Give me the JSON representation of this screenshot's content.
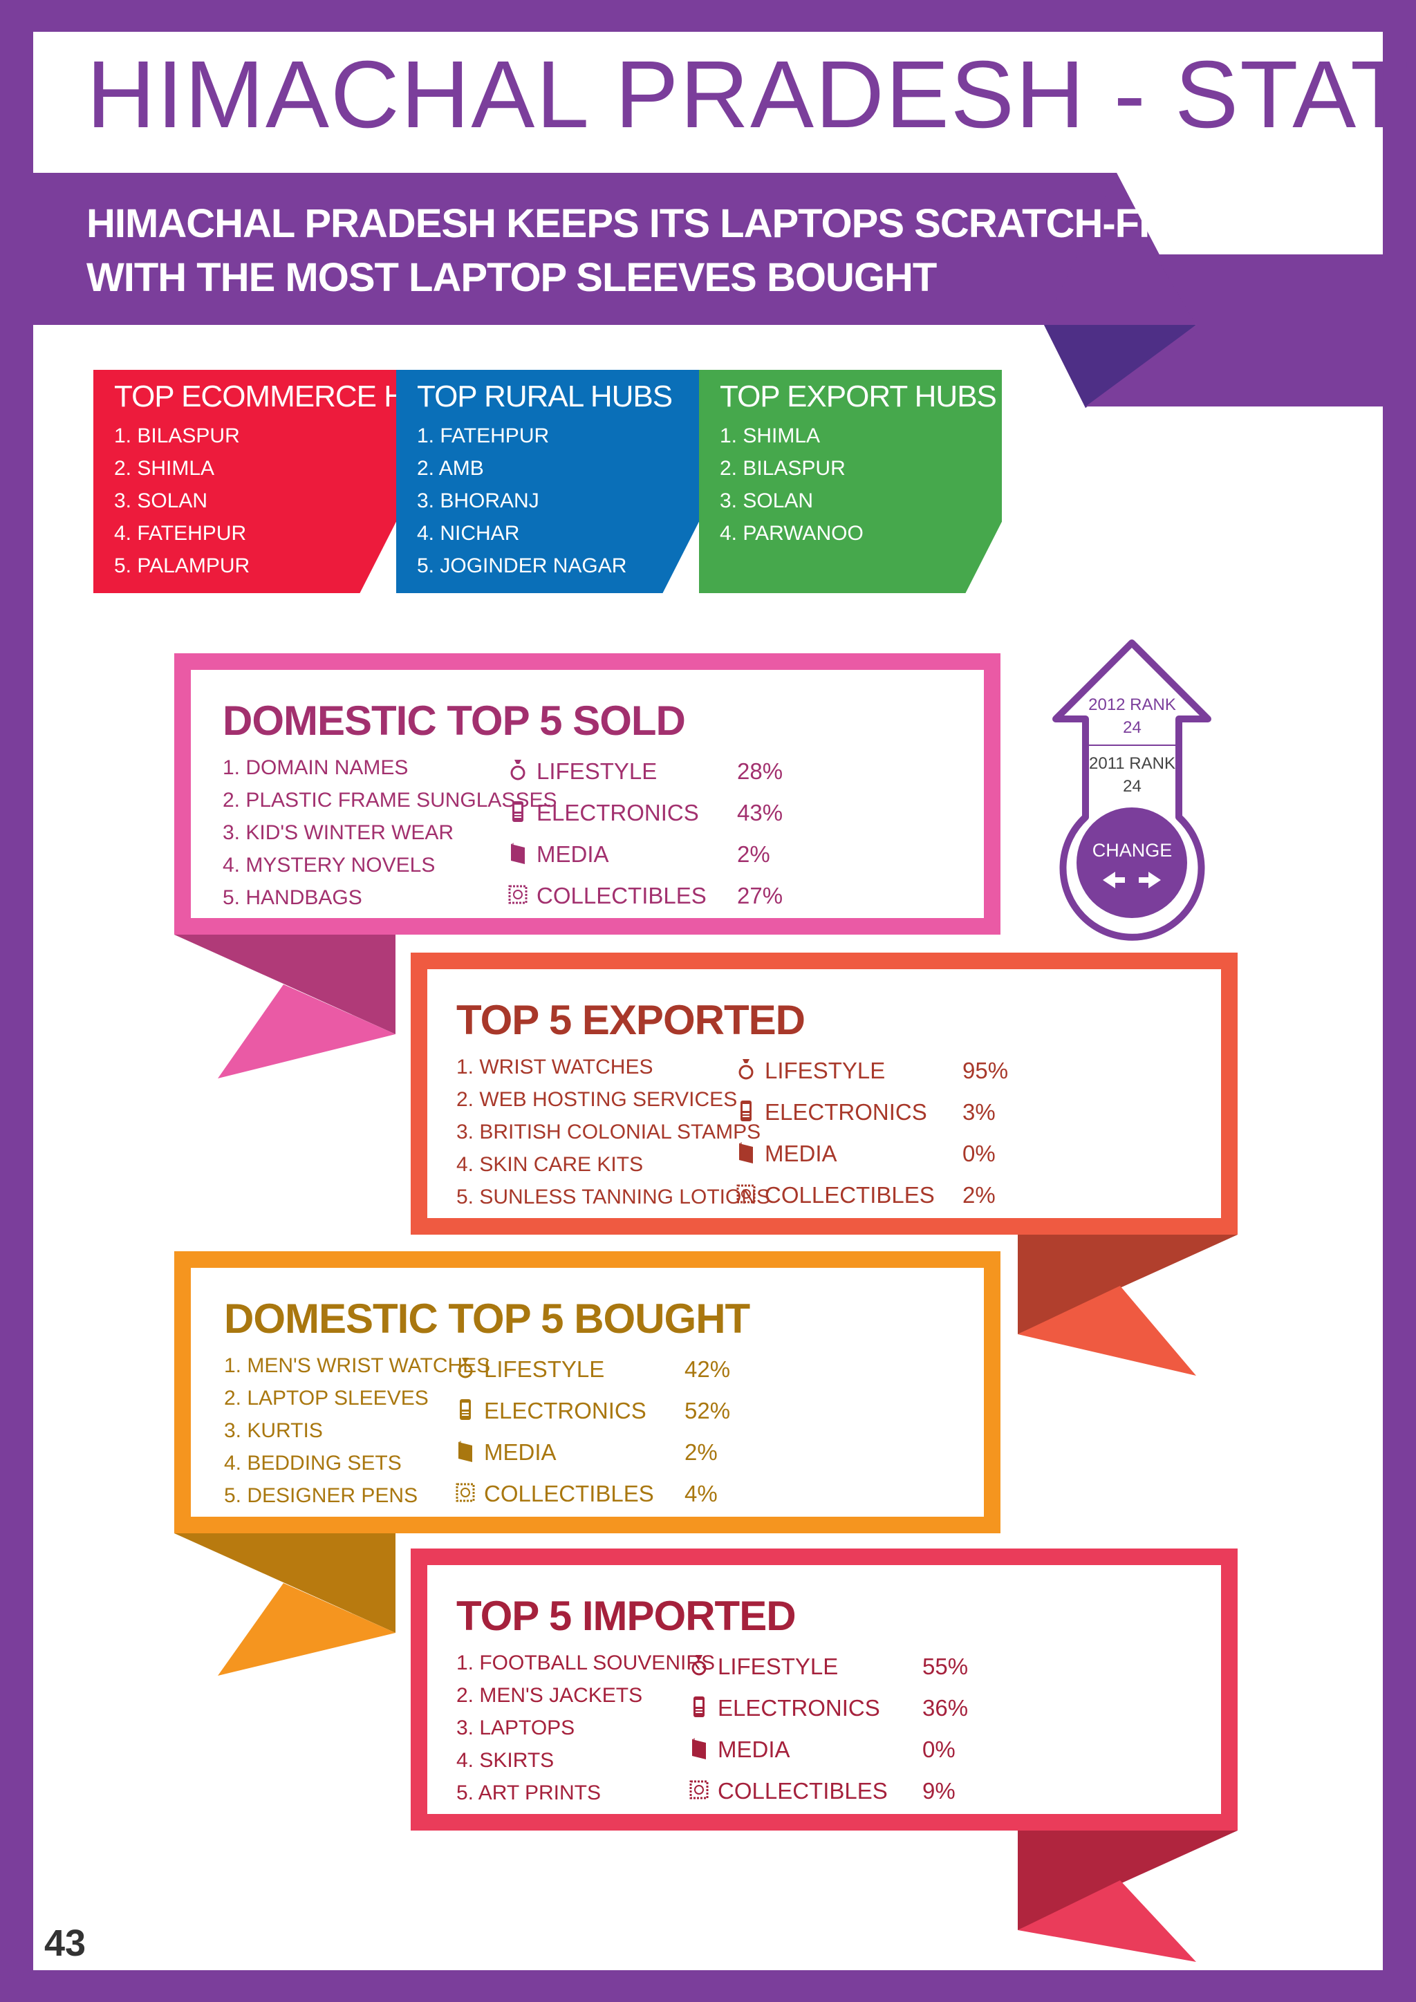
{
  "title": "HIMACHAL PRADESH - STATE",
  "headline": [
    "HIMACHAL PRADESH KEEPS ITS LAPTOPS SCRATCH-FREE",
    "WITH THE MOST LAPTOP SLEEVES BOUGHT"
  ],
  "hubs": [
    {
      "title": "TOP ECOMMERCE HUBS",
      "color": "#ed1b3c",
      "items": [
        "1. BILASPUR",
        "2. SHIMLA",
        "3. SOLAN",
        "4. FATEHPUR",
        "5. PALAMPUR"
      ]
    },
    {
      "title": "TOP RURAL HUBS",
      "color": "#0a6fb8",
      "items": [
        "1. FATEHPUR",
        "2. AMB",
        "3. BHORANJ",
        "4. NICHAR",
        "5. JOGINDER NAGAR"
      ]
    },
    {
      "title": "TOP EXPORT HUBS",
      "color": "#46a84c",
      "items": [
        "1. SHIMLA",
        "2. BILASPUR",
        "3. SOLAN",
        "4. PARWANOO"
      ]
    }
  ],
  "rank": {
    "rank_2012_label": "2012 RANK",
    "rank_2012_value": "24",
    "rank_2011_label": "2011 RANK",
    "rank_2011_value": "24",
    "change_label": "CHANGE"
  },
  "categories": [
    "LIFESTYLE",
    "ELECTRONICS",
    "MEDIA",
    "COLLECTIBLES"
  ],
  "sections": [
    {
      "title": "DOMESTIC TOP 5 SOLD",
      "frame_color": "#ea5aa5",
      "text_color": "#a2306e",
      "items": [
        "1. DOMAIN NAMES",
        "2. PLASTIC FRAME SUNGLASSES",
        "3. KID'S WINTER WEAR",
        "4. MYSTERY NOVELS",
        "5. HANDBAGS"
      ],
      "percentages": [
        "28%",
        "43%",
        "2%",
        "27%"
      ]
    },
    {
      "title": "TOP 5 EXPORTED",
      "frame_color": "#ef5a41",
      "text_color": "#a8382a",
      "items": [
        "1. WRIST WATCHES",
        "2. WEB HOSTING SERVICES",
        "3. BRITISH COLONIAL STAMPS",
        "4. SKIN CARE KITS",
        "5. SUNLESS TANNING LOTIONS"
      ],
      "percentages": [
        "95%",
        "3%",
        "0%",
        "2%"
      ]
    },
    {
      "title": "DOMESTIC TOP 5 BOUGHT",
      "frame_color": "#f5951f",
      "text_color": "#a9770f",
      "items": [
        "1. MEN'S WRIST WATCHES",
        "2. LAPTOP SLEEVES",
        "3. KURTIS",
        "4. BEDDING SETS",
        "5. DESIGNER PENS"
      ],
      "percentages": [
        "42%",
        "52%",
        "2%",
        "4%"
      ]
    },
    {
      "title": "TOP 5 IMPORTED",
      "frame_color": "#ea3c5a",
      "text_color": "#a5213c",
      "items": [
        "1. FOOTBALL SOUVENIRS",
        "2. MEN'S JACKETS",
        "3. LAPTOPS",
        "4. SKIRTS",
        "5. ART PRINTS"
      ],
      "percentages": [
        "55%",
        "36%",
        "0%",
        "9%"
      ]
    }
  ],
  "page_number": "43"
}
